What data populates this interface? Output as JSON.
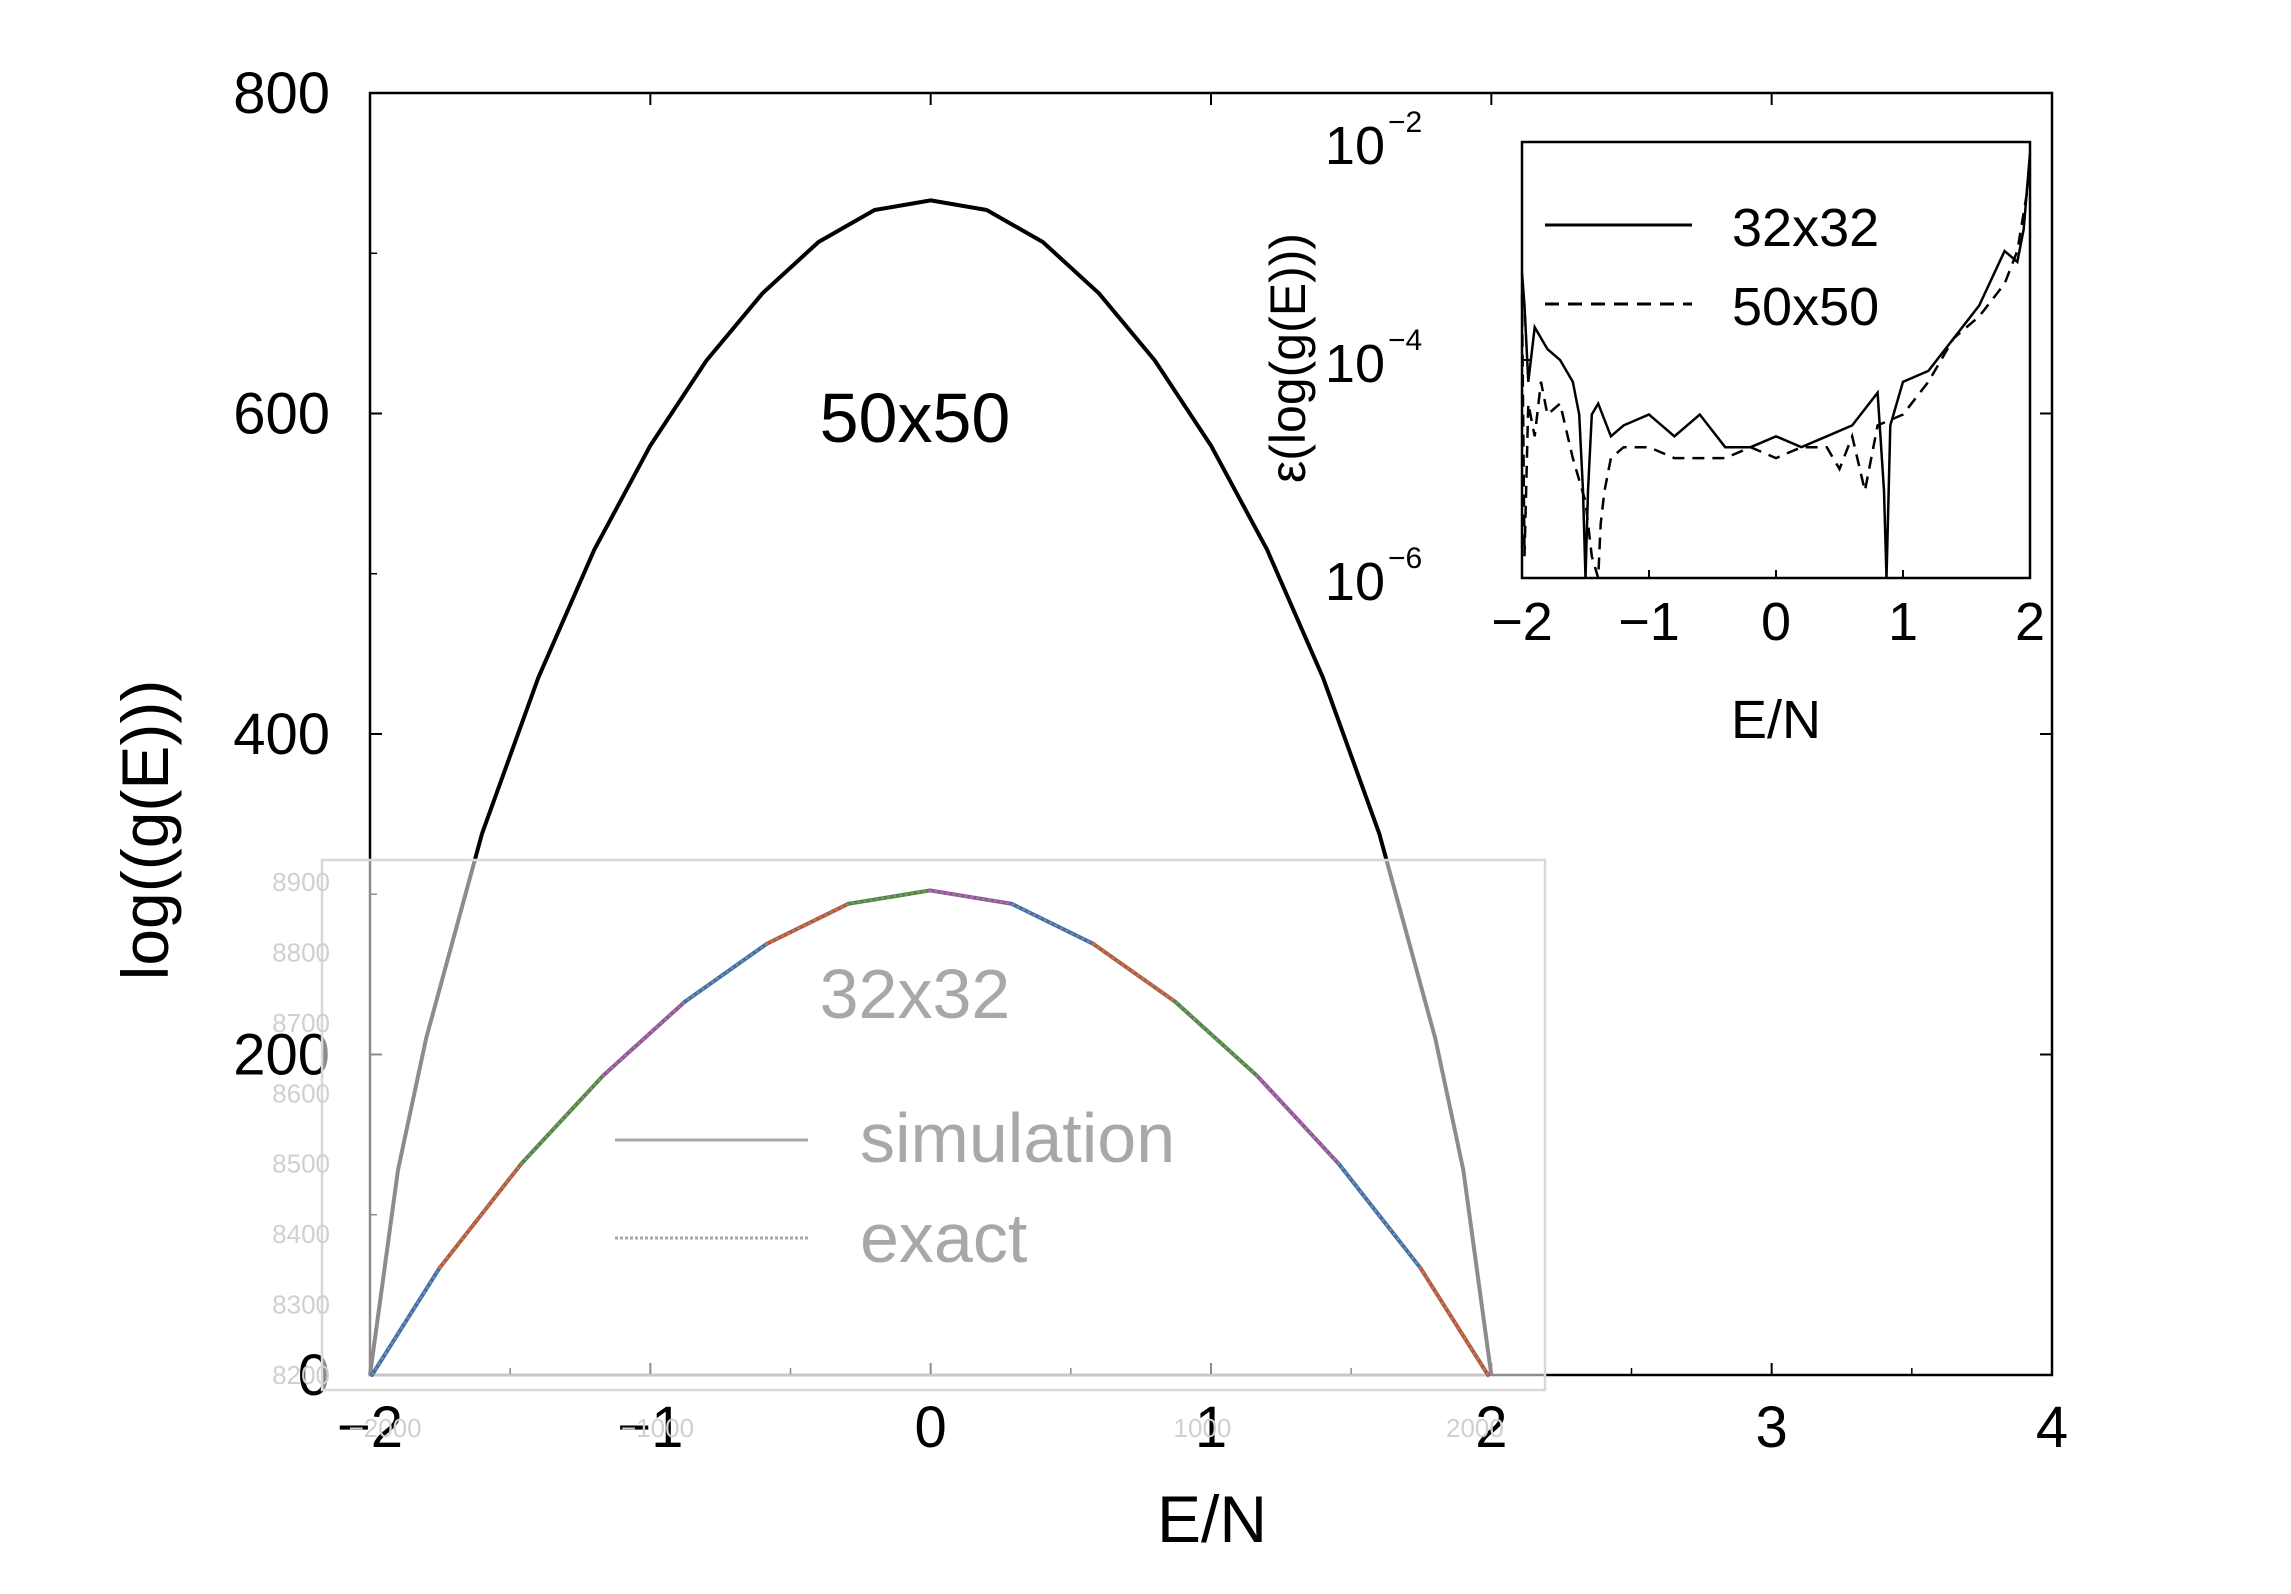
{
  "chart_data": [
    {
      "type": "line",
      "role": "main",
      "xlabel": "E/N",
      "ylabel": "log((g(E)))",
      "xlim": [
        -2,
        4
      ],
      "ylim": [
        0,
        800
      ],
      "x_ticks": [
        "−2",
        "−1",
        "0",
        "1",
        "2",
        "3",
        "4"
      ],
      "y_ticks": [
        "0",
        "200",
        "400",
        "600",
        "800"
      ],
      "grid": false,
      "annotation": "50x50",
      "series": [
        {
          "name": "50x50",
          "x": [
            -2.0,
            -1.9,
            -1.8,
            -1.6,
            -1.4,
            -1.2,
            -1.0,
            -0.8,
            -0.6,
            -0.4,
            -0.2,
            0.0,
            0.2,
            0.4,
            0.6,
            0.8,
            1.0,
            1.2,
            1.4,
            1.6,
            1.8,
            1.9,
            2.0
          ],
          "y": [
            0,
            128,
            210,
            338,
            435,
            515,
            580,
            633,
            675,
            707,
            727,
            733,
            727,
            707,
            675,
            633,
            580,
            515,
            435,
            338,
            210,
            128,
            0
          ]
        }
      ]
    },
    {
      "type": "line",
      "role": "overlay",
      "annotation": "32x32",
      "x_ticks": [
        "−2000",
        "−1000",
        "1000",
        "2000"
      ],
      "x_tick_values": [
        -2000,
        -1000,
        1000,
        2000
      ],
      "xlim": [
        -2048,
        2048
      ],
      "y_ticks": [
        "8200",
        "8300",
        "8400",
        "8500",
        "8600",
        "8700",
        "8800",
        "8900"
      ],
      "ylim": [
        8200,
        8900
      ],
      "legend": [
        "simulation",
        "exact"
      ],
      "legend_position": "center",
      "series": [
        {
          "name": "simulation",
          "x": [
            -2048,
            -1800,
            -1500,
            -1200,
            -900,
            -600,
            -300,
            0,
            300,
            600,
            900,
            1200,
            1500,
            1800,
            2048
          ],
          "y": [
            8200,
            8352,
            8500,
            8625,
            8730,
            8812,
            8869,
            8888,
            8869,
            8812,
            8730,
            8625,
            8500,
            8352,
            8200
          ]
        },
        {
          "name": "exact",
          "x": [
            -2048,
            -1800,
            -1500,
            -1200,
            -900,
            -600,
            -300,
            0,
            300,
            600,
            900,
            1200,
            1500,
            1800,
            2048
          ],
          "y": [
            8200,
            8352,
            8500,
            8625,
            8730,
            8812,
            8869,
            8888,
            8869,
            8812,
            8730,
            8625,
            8500,
            8352,
            8200
          ]
        }
      ]
    },
    {
      "type": "line",
      "role": "inset",
      "xlabel": "E/N",
      "ylabel": "ε(log(g(E)))",
      "xlim": [
        -2,
        2
      ],
      "ylim_log10": [
        -6,
        -2
      ],
      "y_scale": "log",
      "x_ticks": [
        "−2",
        "−1",
        "0",
        "1",
        "2"
      ],
      "y_ticks": [
        {
          "base": "10",
          "exp": "−2",
          "log10": -2
        },
        {
          "base": "10",
          "exp": "−4",
          "log10": -4
        },
        {
          "base": "10",
          "exp": "−6",
          "log10": -6
        }
      ],
      "legend": [
        "32x32",
        "50x50"
      ],
      "legend_position": "top-left",
      "series": [
        {
          "name": "32x32",
          "style": "solid",
          "x": [
            -2.0,
            -1.98,
            -1.95,
            -1.9,
            -1.8,
            -1.7,
            -1.6,
            -1.55,
            -1.52,
            -1.5,
            -1.48,
            -1.45,
            -1.4,
            -1.3,
            -1.2,
            -1.0,
            -0.8,
            -0.6,
            -0.4,
            -0.2,
            0.0,
            0.2,
            0.4,
            0.6,
            0.8,
            0.85,
            0.87,
            0.9,
            1.0,
            1.2,
            1.4,
            1.6,
            1.8,
            1.9,
            1.95,
            2.0
          ],
          "y_log10": [
            -3.2,
            -3.5,
            -4.2,
            -3.7,
            -3.9,
            -4.0,
            -4.2,
            -4.5,
            -5.2,
            -6.0,
            -5.2,
            -4.5,
            -4.4,
            -4.7,
            -4.6,
            -4.5,
            -4.7,
            -4.5,
            -4.8,
            -4.8,
            -4.7,
            -4.8,
            -4.7,
            -4.6,
            -4.3,
            -5.2,
            -6.0,
            -4.6,
            -4.2,
            -4.1,
            -3.8,
            -3.5,
            -3.0,
            -3.1,
            -2.8,
            -2.1
          ]
        },
        {
          "name": "50x50",
          "style": "dashed",
          "x": [
            -2.0,
            -1.98,
            -1.95,
            -1.9,
            -1.85,
            -1.8,
            -1.7,
            -1.6,
            -1.5,
            -1.45,
            -1.4,
            -1.38,
            -1.35,
            -1.3,
            -1.2,
            -1.0,
            -0.8,
            -0.6,
            -0.4,
            -0.2,
            0.0,
            0.2,
            0.4,
            0.5,
            0.6,
            0.7,
            0.8,
            1.0,
            1.2,
            1.4,
            1.6,
            1.8,
            1.9,
            2.0
          ],
          "y_log10": [
            -3.4,
            -5.8,
            -4.4,
            -4.7,
            -4.2,
            -4.5,
            -4.4,
            -4.9,
            -5.3,
            -5.8,
            -6.0,
            -5.5,
            -5.2,
            -4.9,
            -4.8,
            -4.8,
            -4.9,
            -4.9,
            -4.9,
            -4.8,
            -4.9,
            -4.8,
            -4.8,
            -5.0,
            -4.7,
            -5.2,
            -4.6,
            -4.5,
            -4.2,
            -3.8,
            -3.6,
            -3.3,
            -3.0,
            -2.3
          ]
        }
      ]
    }
  ]
}
